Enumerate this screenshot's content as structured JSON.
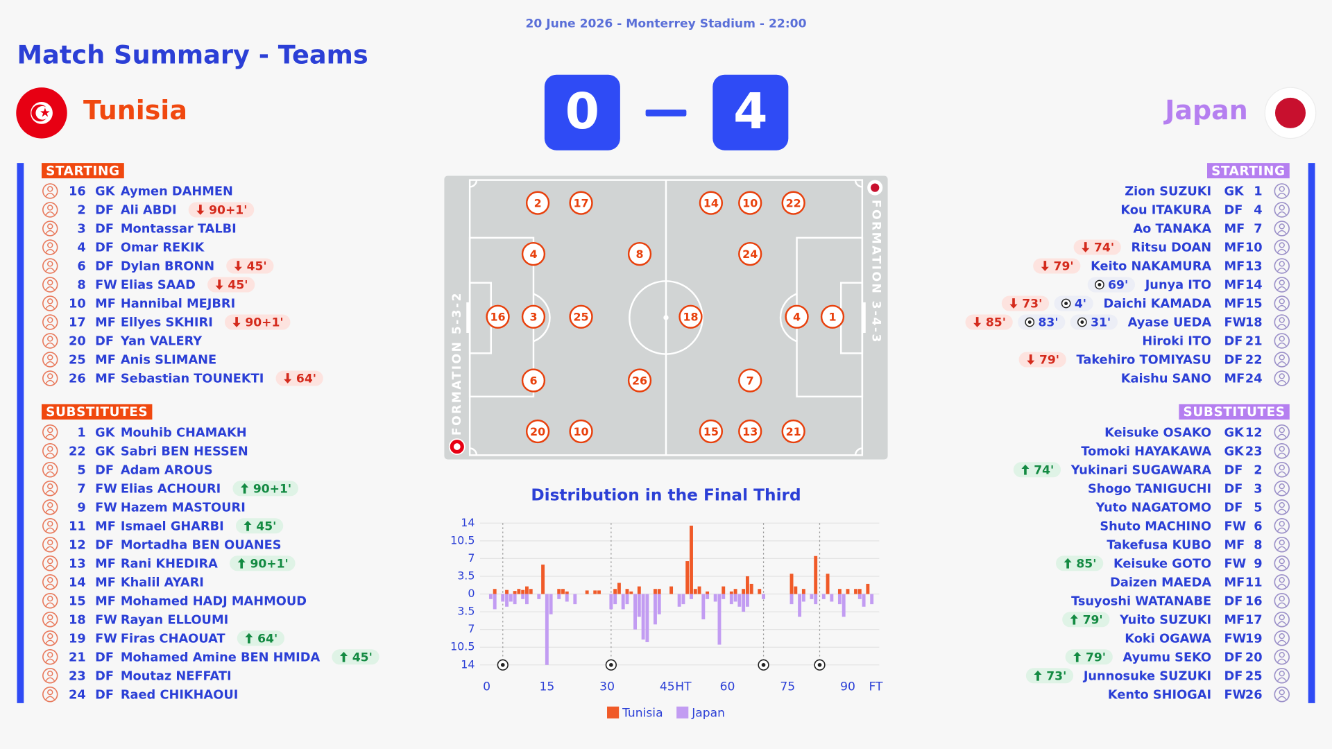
{
  "header": {
    "info": "20 June 2026 - Monterrey Stadium - 22:00",
    "title": "Match Summary - Teams"
  },
  "score": {
    "home": 0,
    "away": 4
  },
  "teams": [
    {
      "name": "Tunisia",
      "color": "#f0480f",
      "formation": "FORMATION 5-3-2",
      "starting_label": "STARTING",
      "substitutes_label": "SUBSTITUTES",
      "starting": [
        {
          "number": 16,
          "position": "GK",
          "name": "Aymen DAHMEN",
          "events": []
        },
        {
          "number": 2,
          "position": "DF",
          "name": "Ali ABDI",
          "events": [
            {
              "type": "off",
              "minute": "90+1'"
            }
          ]
        },
        {
          "number": 3,
          "position": "DF",
          "name": "Montassar TALBI",
          "events": []
        },
        {
          "number": 4,
          "position": "DF",
          "name": "Omar REKIK",
          "events": []
        },
        {
          "number": 6,
          "position": "DF",
          "name": "Dylan BRONN",
          "events": [
            {
              "type": "off",
              "minute": "45'"
            }
          ]
        },
        {
          "number": 8,
          "position": "FW",
          "name": "Elias SAAD",
          "events": [
            {
              "type": "off",
              "minute": "45'"
            }
          ]
        },
        {
          "number": 10,
          "position": "MF",
          "name": "Hannibal MEJBRI",
          "events": []
        },
        {
          "number": 17,
          "position": "MF",
          "name": "Ellyes SKHIRI",
          "events": [
            {
              "type": "off",
              "minute": "90+1'"
            }
          ]
        },
        {
          "number": 20,
          "position": "DF",
          "name": "Yan VALERY",
          "events": []
        },
        {
          "number": 25,
          "position": "MF",
          "name": "Anis SLIMANE",
          "events": []
        },
        {
          "number": 26,
          "position": "MF",
          "name": "Sebastian TOUNEKTI",
          "events": [
            {
              "type": "off",
              "minute": "64'"
            }
          ]
        }
      ],
      "substitutes": [
        {
          "number": 1,
          "position": "GK",
          "name": "Mouhib CHAMAKH",
          "events": []
        },
        {
          "number": 22,
          "position": "GK",
          "name": "Sabri BEN HESSEN",
          "events": []
        },
        {
          "number": 5,
          "position": "DF",
          "name": "Adam AROUS",
          "events": []
        },
        {
          "number": 7,
          "position": "FW",
          "name": "Elias ACHOURI",
          "events": [
            {
              "type": "on",
              "minute": "90+1'"
            }
          ]
        },
        {
          "number": 9,
          "position": "FW",
          "name": "Hazem MASTOURI",
          "events": []
        },
        {
          "number": 11,
          "position": "MF",
          "name": "Ismael GHARBI",
          "events": [
            {
              "type": "on",
              "minute": "45'"
            }
          ]
        },
        {
          "number": 12,
          "position": "DF",
          "name": "Mortadha BEN OUANES",
          "events": []
        },
        {
          "number": 13,
          "position": "MF",
          "name": "Rani KHEDIRA",
          "events": [
            {
              "type": "on",
              "minute": "90+1'"
            }
          ]
        },
        {
          "number": 14,
          "position": "MF",
          "name": "Khalil AYARI",
          "events": []
        },
        {
          "number": 15,
          "position": "MF",
          "name": "Mohamed HADJ MAHMOUD",
          "events": []
        },
        {
          "number": 18,
          "position": "FW",
          "name": "Rayan ELLOUMI",
          "events": []
        },
        {
          "number": 19,
          "position": "FW",
          "name": "Firas CHAOUAT",
          "events": [
            {
              "type": "on",
              "minute": "64'"
            }
          ]
        },
        {
          "number": 21,
          "position": "DF",
          "name": "Mohamed Amine BEN HMIDA",
          "events": [
            {
              "type": "on",
              "minute": "45'"
            }
          ]
        },
        {
          "number": 23,
          "position": "DF",
          "name": "Moutaz NEFFATI",
          "events": []
        },
        {
          "number": 24,
          "position": "DF",
          "name": "Raed CHIKHAOUI",
          "events": []
        }
      ],
      "pitch": [
        2,
        17,
        4,
        8,
        16,
        3,
        25,
        6,
        26,
        20,
        10
      ]
    },
    {
      "name": "Japan",
      "color": "#b57ff0",
      "formation": "FORMATION 3-4-3",
      "starting_label": "STARTING",
      "substitutes_label": "SUBSTITUTES",
      "starting": [
        {
          "number": 1,
          "position": "GK",
          "name": "Zion SUZUKI",
          "events": []
        },
        {
          "number": 4,
          "position": "DF",
          "name": "Kou ITAKURA",
          "events": []
        },
        {
          "number": 7,
          "position": "MF",
          "name": "Ao TANAKA",
          "events": []
        },
        {
          "number": 10,
          "position": "MF",
          "name": "Ritsu DOAN",
          "events": [
            {
              "type": "off",
              "minute": "74'"
            }
          ]
        },
        {
          "number": 13,
          "position": "MF",
          "name": "Keito NAKAMURA",
          "events": [
            {
              "type": "off",
              "minute": "79'"
            }
          ]
        },
        {
          "number": 14,
          "position": "MF",
          "name": "Junya ITO",
          "events": [
            {
              "type": "goal",
              "minute": "69'"
            }
          ]
        },
        {
          "number": 15,
          "position": "MF",
          "name": "Daichi KAMADA",
          "events": [
            {
              "type": "off",
              "minute": "73'"
            },
            {
              "type": "goal",
              "minute": "4'"
            }
          ]
        },
        {
          "number": 18,
          "position": "FW",
          "name": "Ayase UEDA",
          "events": [
            {
              "type": "off",
              "minute": "85'"
            },
            {
              "type": "goal",
              "minute": "83'"
            },
            {
              "type": "goal",
              "minute": "31'"
            }
          ]
        },
        {
          "number": 21,
          "position": "DF",
          "name": "Hiroki ITO",
          "events": []
        },
        {
          "number": 22,
          "position": "DF",
          "name": "Takehiro TOMIYASU",
          "events": [
            {
              "type": "off",
              "minute": "79'"
            }
          ]
        },
        {
          "number": 24,
          "position": "MF",
          "name": "Kaishu SANO",
          "events": []
        }
      ],
      "substitutes": [
        {
          "number": 12,
          "position": "GK",
          "name": "Keisuke OSAKO",
          "events": []
        },
        {
          "number": 23,
          "position": "GK",
          "name": "Tomoki HAYAKAWA",
          "events": []
        },
        {
          "number": 2,
          "position": "DF",
          "name": "Yukinari SUGAWARA",
          "events": [
            {
              "type": "on",
              "minute": "74'"
            }
          ]
        },
        {
          "number": 3,
          "position": "DF",
          "name": "Shogo TANIGUCHI",
          "events": []
        },
        {
          "number": 5,
          "position": "DF",
          "name": "Yuto NAGATOMO",
          "events": []
        },
        {
          "number": 6,
          "position": "FW",
          "name": "Shuto MACHINO",
          "events": []
        },
        {
          "number": 8,
          "position": "MF",
          "name": "Takefusa KUBO",
          "events": []
        },
        {
          "number": 9,
          "position": "FW",
          "name": "Keisuke GOTO",
          "events": [
            {
              "type": "on",
              "minute": "85'"
            }
          ]
        },
        {
          "number": 11,
          "position": "MF",
          "name": "Daizen MAEDA",
          "events": []
        },
        {
          "number": 16,
          "position": "DF",
          "name": "Tsuyoshi WATANABE",
          "events": []
        },
        {
          "number": 17,
          "position": "MF",
          "name": "Yuito SUZUKI",
          "events": [
            {
              "type": "on",
              "minute": "79'"
            }
          ]
        },
        {
          "number": 19,
          "position": "FW",
          "name": "Koki OGAWA",
          "events": []
        },
        {
          "number": 20,
          "position": "DF",
          "name": "Ayumu SEKO",
          "events": [
            {
              "type": "on",
              "minute": "79'"
            }
          ]
        },
        {
          "number": 25,
          "position": "DF",
          "name": "Junnosuke SUZUKI",
          "events": [
            {
              "type": "on",
              "minute": "73'"
            }
          ]
        },
        {
          "number": 26,
          "position": "FW",
          "name": "Kento SHIOGAI",
          "events": []
        }
      ],
      "pitch": [
        14,
        10,
        22,
        24,
        18,
        4,
        1,
        7,
        15,
        13,
        21
      ]
    }
  ],
  "chart_data": {
    "type": "bar",
    "title": "Distribution in the Final Third",
    "xlim": [
      0,
      97
    ],
    "xticks": [
      0,
      15,
      30,
      45,
      {
        "value": 49,
        "label": "HT"
      },
      60,
      75,
      90,
      {
        "value": 97,
        "label": "FT"
      }
    ],
    "ylim": [
      -14,
      14
    ],
    "yticks": [
      14,
      10.5,
      7,
      3.5,
      0,
      {
        "value": -3.5,
        "label": "3.5"
      },
      {
        "value": -7,
        "label": "7"
      },
      {
        "value": -10.5,
        "label": "10.5"
      },
      {
        "value": -14,
        "label": "14"
      }
    ],
    "grid": true,
    "legend": "bottom",
    "goal_minutes": [
      4,
      31,
      69,
      83
    ],
    "series": [
      {
        "name": "Tunisia",
        "color": "#f05a28",
        "x": [
          2,
          5,
          7,
          8,
          9,
          10,
          11,
          14,
          18,
          19,
          20,
          25,
          27,
          28,
          32,
          33,
          35,
          36,
          38,
          42,
          43,
          46,
          50,
          51,
          52,
          53,
          55,
          59,
          61,
          62,
          64,
          65,
          66,
          68,
          76,
          77,
          79,
          82,
          85,
          88,
          90,
          92,
          93,
          95
        ],
        "values": [
          1,
          0.8,
          0.6,
          1,
          0.8,
          1.5,
          1,
          5.8,
          1,
          1,
          0.5,
          0.7,
          0.7,
          0.7,
          1,
          2.2,
          1,
          0.5,
          1.5,
          1,
          1,
          1.5,
          6.5,
          13.5,
          1,
          1.5,
          0.5,
          1.5,
          0.5,
          1,
          1,
          3.5,
          2,
          1,
          4,
          1.5,
          1,
          7.5,
          4,
          1,
          1,
          1,
          1,
          2
        ]
      },
      {
        "name": "Japan",
        "color": "#c29cf2",
        "x": [
          1,
          2,
          4,
          5,
          6,
          7,
          9,
          10,
          13,
          15,
          16,
          18,
          20,
          22,
          31,
          32,
          34,
          35,
          37,
          38,
          39,
          40,
          42,
          43,
          48,
          49,
          51,
          54,
          55,
          57,
          58,
          59,
          61,
          62,
          63,
          64,
          65,
          69,
          76,
          78,
          79,
          81,
          82,
          84,
          86,
          88,
          89,
          93,
          94,
          96
        ],
        "values": [
          -1,
          -3,
          -1.5,
          -2.5,
          -1.5,
          -2,
          -1,
          -2,
          -1,
          -14,
          -4,
          -1,
          -1.5,
          -2,
          -3,
          -2,
          -3,
          -2,
          -7,
          -4.5,
          -9,
          -9.5,
          -6,
          -4,
          -2.5,
          -2,
          -1,
          -5,
          -1,
          -1.5,
          -10,
          -1,
          -2,
          -1.5,
          -2.5,
          -3.5,
          -2.5,
          -1,
          -2,
          -4.5,
          -1.5,
          -1,
          -2,
          -1,
          -1.5,
          -2,
          -4.5,
          -1,
          -2.5,
          -2
        ]
      }
    ]
  }
}
